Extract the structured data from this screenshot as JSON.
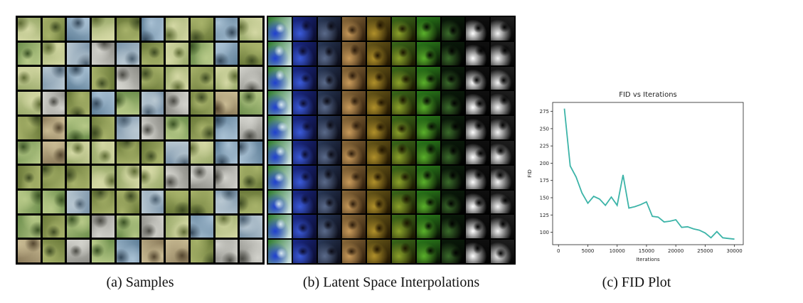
{
  "figure": {
    "captions": {
      "a": "(a) Samples",
      "b": "(b) Latent Space Interpolations",
      "c": "(c) FID Plot"
    }
  },
  "samples_grid": {
    "rows": 10,
    "cols": 10
  },
  "interp_grid": {
    "rows": 10,
    "cols": 10
  },
  "chart_data": {
    "type": "line",
    "title": "FID vs Iterations",
    "xlabel": "Iterations",
    "ylabel": "FID",
    "xlim": [
      -1000,
      31500
    ],
    "ylim": [
      82,
      288
    ],
    "xticks": [
      0,
      5000,
      10000,
      15000,
      20000,
      25000,
      30000
    ],
    "yticks": [
      100,
      125,
      150,
      175,
      200,
      225,
      250,
      275
    ],
    "line_color": "#3cb4a8",
    "series": [
      {
        "x": [
          1000,
          2000,
          3000,
          4000,
          5000,
          6000,
          7000,
          8000,
          9000,
          10000,
          11000,
          12000,
          13000,
          14000,
          15000,
          16000,
          17000,
          18000,
          19000,
          20000,
          21000,
          22000,
          23000,
          24000,
          25000,
          26000,
          27000,
          28000,
          29000,
          30000
        ],
        "y": [
          279,
          196,
          180,
          157,
          142,
          152,
          148,
          139,
          151,
          139,
          183,
          135,
          137,
          140,
          144,
          123,
          122,
          115,
          116,
          118,
          107,
          108,
          105,
          103,
          99,
          92,
          101,
          92,
          91,
          90
        ]
      }
    ]
  }
}
